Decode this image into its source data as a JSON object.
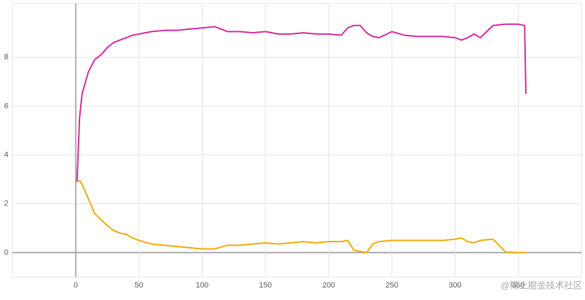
{
  "chart_data": {
    "type": "line",
    "x": [
      1,
      3,
      5,
      10,
      15,
      20,
      25,
      30,
      35,
      40,
      45,
      50,
      60,
      70,
      80,
      90,
      100,
      110,
      120,
      130,
      140,
      150,
      160,
      170,
      180,
      190,
      200,
      210,
      215,
      220,
      225,
      230,
      235,
      240,
      250,
      260,
      270,
      280,
      290,
      300,
      305,
      310,
      315,
      320,
      330,
      340,
      350,
      355,
      356
    ],
    "series": [
      {
        "color": "#d6259e",
        "values": [
          2.9,
          5.5,
          6.5,
          7.4,
          7.9,
          8.1,
          8.4,
          8.6,
          8.7,
          8.8,
          8.9,
          8.95,
          9.05,
          9.1,
          9.1,
          9.15,
          9.2,
          9.25,
          9.05,
          9.05,
          9.0,
          9.05,
          8.95,
          8.95,
          9.0,
          8.95,
          8.95,
          8.9,
          9.2,
          9.3,
          9.3,
          9.0,
          8.85,
          8.8,
          9.05,
          8.9,
          8.85,
          8.85,
          8.85,
          8.8,
          8.7,
          8.8,
          8.95,
          8.8,
          9.3,
          9.35,
          9.35,
          9.3,
          6.5
        ]
      },
      {
        "color": "#f2a900",
        "values": [
          2.9,
          2.95,
          2.8,
          2.2,
          1.6,
          1.35,
          1.1,
          0.9,
          0.8,
          0.75,
          0.6,
          0.5,
          0.35,
          0.3,
          0.25,
          0.2,
          0.15,
          0.15,
          0.3,
          0.3,
          0.35,
          0.4,
          0.35,
          0.4,
          0.45,
          0.4,
          0.45,
          0.45,
          0.5,
          0.1,
          0.05,
          0.0,
          0.35,
          0.45,
          0.5,
          0.5,
          0.5,
          0.5,
          0.5,
          0.55,
          0.6,
          0.45,
          0.4,
          0.5,
          0.55,
          0.02,
          0.0,
          0.0,
          0.0
        ]
      }
    ],
    "xlim": [
      -50,
      400
    ],
    "xticks": [
      0,
      50,
      100,
      150,
      200,
      250,
      300,
      350
    ],
    "ylim": [
      -1,
      10.2
    ],
    "yticks": [
      0,
      2,
      4,
      6,
      8
    ],
    "grid": true,
    "watermark": "@稀土掘金技术社区"
  }
}
